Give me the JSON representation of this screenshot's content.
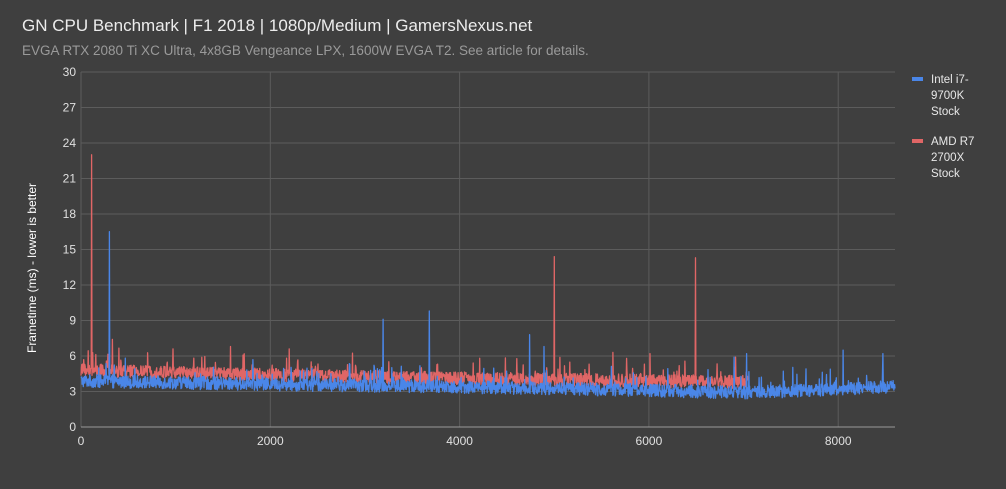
{
  "chart_data": {
    "type": "line",
    "title": "GN CPU Benchmark | F1 2018 | 1080p/Medium | GamersNexus.net",
    "subtitle": "EVGA RTX 2080 Ti XC Ultra, 4x8GB Vengeance LPX, 1600W EVGA T2. See article for details.",
    "xlabel": "",
    "ylabel": "Frametime (ms) - lower is better",
    "xlim": [
      0,
      8600
    ],
    "ylim": [
      0,
      30
    ],
    "xticks": [
      0,
      2000,
      4000,
      6000,
      8000
    ],
    "yticks": [
      0,
      3,
      6,
      9,
      12,
      15,
      18,
      21,
      24,
      27,
      30
    ],
    "grid": true,
    "legend_position": "right",
    "series": [
      {
        "name": "Intel i7-9700K Stock",
        "color": "#4a86e8",
        "length": 8600,
        "trend": [
          [
            0,
            3.9
          ],
          [
            2000,
            3.6
          ],
          [
            4000,
            3.4
          ],
          [
            6000,
            3.1
          ],
          [
            7000,
            2.9
          ],
          [
            8000,
            3.2
          ],
          [
            8600,
            3.4
          ]
        ],
        "spikes": [
          [
            300,
            16.5
          ],
          [
            3190,
            9.1
          ],
          [
            3680,
            9.8
          ],
          [
            4740,
            7.8
          ],
          [
            4890,
            6.8
          ],
          [
            6900,
            5.9
          ],
          [
            7030,
            6.2
          ],
          [
            8050,
            6.5
          ],
          [
            8470,
            6.2
          ]
        ]
      },
      {
        "name": "AMD R7 2700X Stock",
        "color": "#e06666",
        "length": 7050,
        "trend": [
          [
            0,
            4.8
          ],
          [
            2000,
            4.4
          ],
          [
            4000,
            4.1
          ],
          [
            6000,
            3.9
          ],
          [
            7050,
            3.8
          ]
        ],
        "spikes": [
          [
            110,
            23.0
          ],
          [
            330,
            7.4
          ],
          [
            970,
            6.6
          ],
          [
            1580,
            6.8
          ],
          [
            2200,
            6.6
          ],
          [
            5000,
            14.4
          ],
          [
            5620,
            6.3
          ],
          [
            6010,
            6.2
          ],
          [
            6490,
            14.3
          ]
        ]
      }
    ]
  }
}
